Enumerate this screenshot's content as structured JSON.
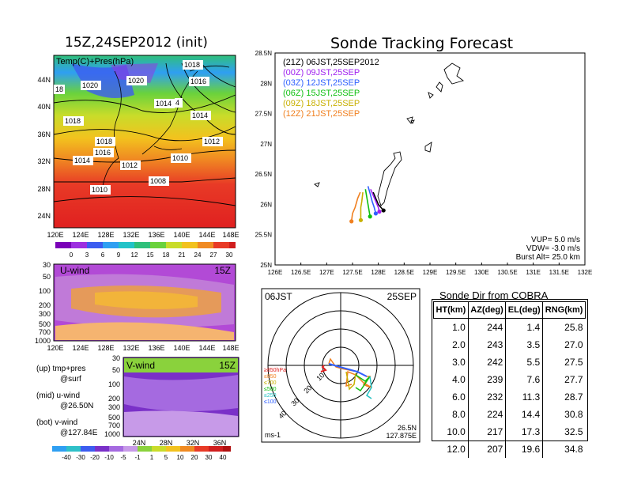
{
  "map_panel": {
    "title": "15Z,24SEP2012 (init)",
    "label": "Temp(C)+Pres(hPa)",
    "x_ticks": [
      "120E",
      "124E",
      "128E",
      "132E",
      "136E",
      "140E",
      "144E",
      "148E"
    ],
    "y_ticks": [
      "44N",
      "40N",
      "36N",
      "32N",
      "28N",
      "24N"
    ],
    "isobar_labels": [
      "1018",
      "1016",
      "1020",
      "1020",
      "18",
      "1014",
      "4",
      "1014",
      "1018",
      "1016",
      "1014",
      "1018",
      "1012",
      "1010",
      "1008",
      "1012",
      "1010"
    ],
    "colorbar": [
      "0",
      "3",
      "6",
      "9",
      "12",
      "15",
      "18",
      "21",
      "24",
      "27",
      "30"
    ],
    "colors": [
      "#7a00b8",
      "#9d2fe0",
      "#3c5cf0",
      "#2f9ff2",
      "#22c3c8",
      "#2fc07a",
      "#6ad23c",
      "#c9dc2a",
      "#f2c21e",
      "#f08a22",
      "#e83a26",
      "#d01e1e"
    ]
  },
  "uwind_panel": {
    "label": "U-wind",
    "time": "15Z",
    "y_ticks": [
      "30",
      "50",
      "100",
      "200",
      "300",
      "500",
      "700",
      "1000"
    ],
    "x_ticks": [
      "120E",
      "124E",
      "128E",
      "132E",
      "136E",
      "140E",
      "144E",
      "148E"
    ]
  },
  "vwind_panel": {
    "label": "V-wind",
    "time": "15Z",
    "y_ticks": [
      "30",
      "50",
      "100",
      "200",
      "300",
      "500",
      "700",
      "1000"
    ],
    "x_ticks": [
      "24N",
      "28N",
      "32N",
      "36N"
    ],
    "colorbar": [
      "-40",
      "-30",
      "-20",
      "-10",
      "-5",
      "-1",
      "1",
      "5",
      "10",
      "20",
      "30",
      "40"
    ]
  },
  "legend_notes": {
    "up": "(up) tmp+pres",
    "up2": "@surf",
    "mid": "(mid) u-wind",
    "mid2": "@26.50N",
    "bot": "(bot) v-wind",
    "bot2": "@127.84E"
  },
  "tracking": {
    "title": "Sonde Tracking Forecast",
    "x_ticks": [
      "126E",
      "126.5E",
      "127E",
      "127.5E",
      "128E",
      "128.5E",
      "129E",
      "129.5E",
      "130E",
      "130.5E",
      "131E",
      "131.5E",
      "132E"
    ],
    "y_ticks": [
      "28.5N",
      "28N",
      "27.5N",
      "27N",
      "26.5N",
      "26N",
      "25.5N",
      "25N"
    ],
    "legend": [
      {
        "text": "(21Z)  06JST,25SEP2012",
        "color": "#000000"
      },
      {
        "text": "(00Z)  09JST,25SEP",
        "color": "#a020f0"
      },
      {
        "text": "(03Z)  12JST,25SEP",
        "color": "#3060ff"
      },
      {
        "text": "(06Z)  15JST,25SEP",
        "color": "#10c010"
      },
      {
        "text": "(09Z)  18JST,25SEP",
        "color": "#c8b000"
      },
      {
        "text": "(12Z)  21JST,25SEP",
        "color": "#f08020"
      }
    ],
    "params": {
      "vup": "VUP=  5.0  m/s",
      "vdw": "VDW= -3.0  m/s",
      "burst": "Burst Alt=  25.0  km"
    }
  },
  "polar": {
    "time_left": "06JST",
    "date_right": "25SEP",
    "unit": "ms-1",
    "lat": "26.5N",
    "lon": "127.875E",
    "rings": [
      "10",
      "20",
      "30",
      "40"
    ],
    "levels": [
      {
        "text": "≥850hPa",
        "color": "#e02020"
      },
      {
        "text": "≤850",
        "color": "#f08020"
      },
      {
        "text": "≤700",
        "color": "#c8b000"
      },
      {
        "text": "≤500",
        "color": "#10c010"
      },
      {
        "text": "≤250",
        "color": "#20c0c0"
      },
      {
        "text": "≤100",
        "color": "#3060ff"
      }
    ]
  },
  "sonde_table": {
    "title": "Sonde Dir from COBRA",
    "headers": [
      "HT(km)",
      "AZ(deg)",
      "EL(deg)",
      "RNG(km)"
    ],
    "rows": [
      [
        "1.0",
        "244",
        "1.4",
        "25.8"
      ],
      [
        "2.0",
        "243",
        "3.5",
        "27.0"
      ],
      [
        "3.0",
        "242",
        "5.5",
        "27.5"
      ],
      [
        "4.0",
        "239",
        "7.6",
        "27.7"
      ],
      [
        "6.0",
        "232",
        "11.3",
        "28.7"
      ],
      [
        "8.0",
        "224",
        "14.4",
        "30.8"
      ],
      [
        "10.0",
        "217",
        "17.3",
        "32.5"
      ],
      [
        "12.0",
        "207",
        "19.6",
        "34.8"
      ]
    ]
  },
  "chart_data": {
    "type": "line",
    "title": "Sonde Tracking Forecast",
    "xlabel": "",
    "ylabel": "",
    "xlim": [
      126,
      132
    ],
    "ylim": [
      25,
      28.5
    ],
    "series": [
      {
        "name": "(21Z)  06JST,25SEP2012",
        "x": [
          127.9,
          127.95,
          128.0,
          128.05,
          128.1
        ],
        "y": [
          26.2,
          26.1,
          26.0,
          25.95,
          25.9
        ]
      },
      {
        "name": "(00Z)  09JST,25SEP",
        "x": [
          127.85,
          127.9,
          127.95,
          128.0,
          128.02
        ],
        "y": [
          26.25,
          26.15,
          26.05,
          25.95,
          25.88
        ]
      },
      {
        "name": "(03Z)  12JST,25SEP",
        "x": [
          127.8,
          127.85,
          127.88,
          127.92,
          127.95
        ],
        "y": [
          26.3,
          26.15,
          26.05,
          25.95,
          25.85
        ]
      },
      {
        "name": "(06Z)  15JST,25SEP",
        "x": [
          127.75,
          127.78,
          127.8,
          127.82,
          127.84
        ],
        "y": [
          26.25,
          26.1,
          26.0,
          25.9,
          25.8
        ]
      },
      {
        "name": "(09Z)  18JST,25SEP",
        "x": [
          127.7,
          127.68,
          127.66,
          127.66,
          127.66
        ],
        "y": [
          26.2,
          26.05,
          25.95,
          25.85,
          25.74
        ]
      },
      {
        "name": "(12Z)  21JST,25SEP",
        "x": [
          127.65,
          127.6,
          127.55,
          127.5,
          127.48
        ],
        "y": [
          26.2,
          26.1,
          25.95,
          25.85,
          25.72
        ]
      }
    ]
  }
}
